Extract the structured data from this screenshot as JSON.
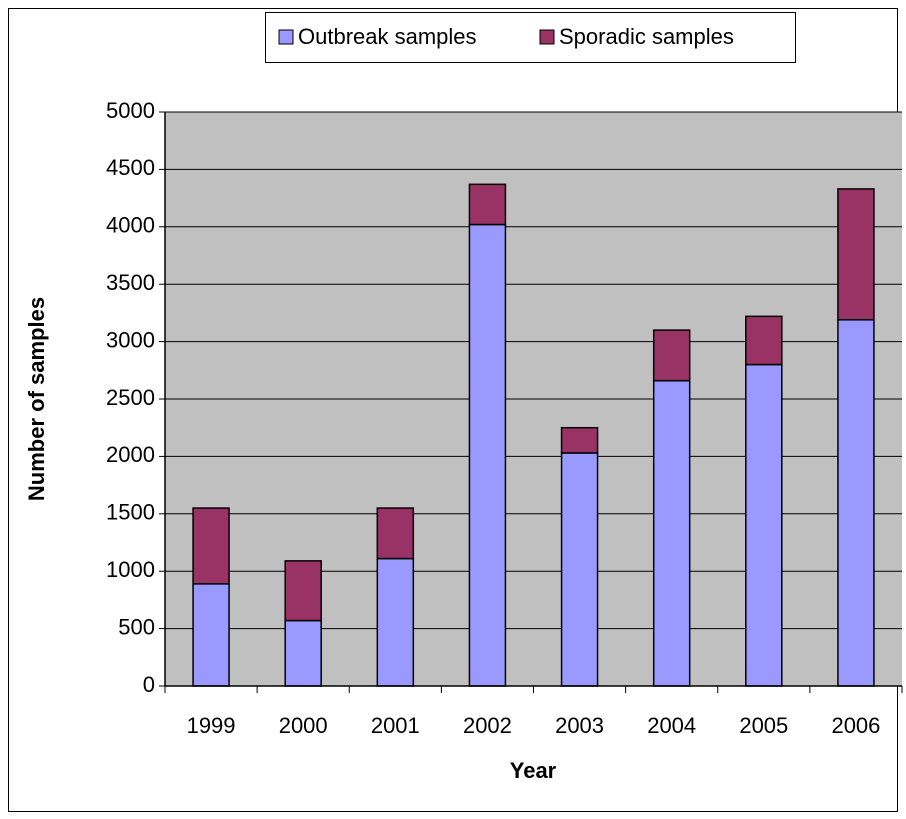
{
  "chart_data": {
    "type": "stacked_bar",
    "x_label": "Year",
    "y_label": "Number of samples",
    "categories": [
      "1999",
      "2000",
      "2001",
      "2002",
      "2003",
      "2004",
      "2005",
      "2006"
    ],
    "series": [
      {
        "name": "Outbreak samples",
        "color": "#9999ff",
        "values": [
          890,
          570,
          1110,
          4020,
          2030,
          2660,
          2800,
          3190
        ]
      },
      {
        "name": "Sporadic samples",
        "color": "#993366",
        "values": [
          660,
          520,
          440,
          350,
          220,
          440,
          420,
          1140
        ]
      }
    ],
    "ylim": [
      0,
      5000
    ],
    "yticks": [
      0,
      500,
      1000,
      1500,
      2000,
      2500,
      3000,
      3500,
      4000,
      4500,
      5000
    ],
    "grid": true,
    "legend": "top"
  }
}
